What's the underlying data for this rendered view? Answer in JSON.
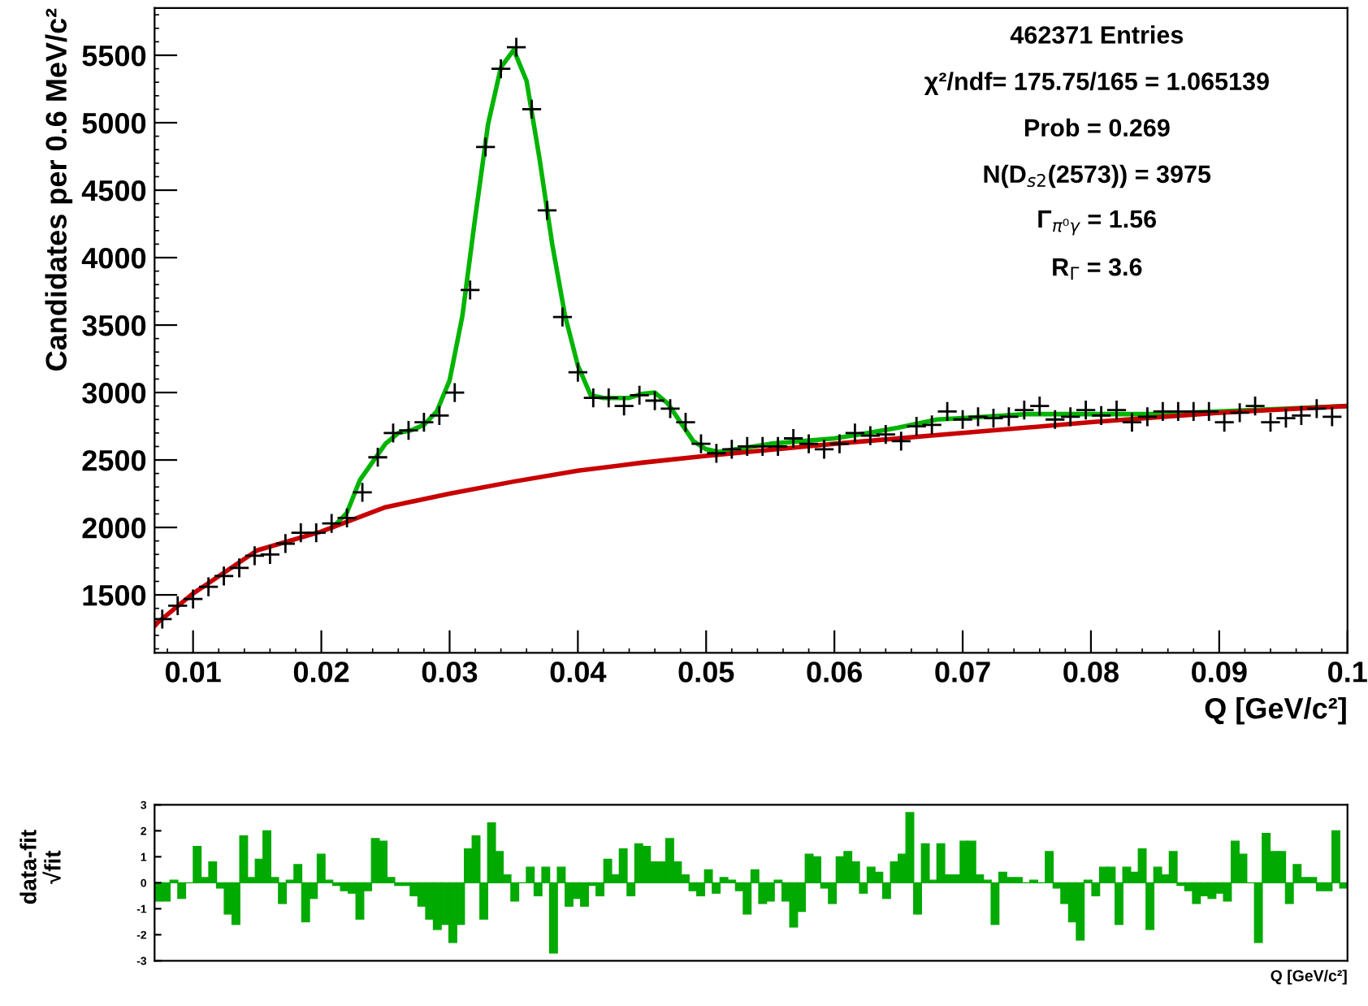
{
  "chart_data": [
    {
      "type": "scatter",
      "xlabel": "Q [GeV/c²]",
      "ylabel": "Candidates per 0.6 MeV/c²",
      "grid": false,
      "xlim": [
        0.007,
        0.1
      ],
      "xticks": [
        0.01,
        0.02,
        0.03,
        0.04,
        0.05,
        0.06,
        0.07,
        0.08,
        0.09,
        0.1
      ],
      "ylim": [
        1070,
        5850
      ],
      "yticks": [
        1500,
        2000,
        2500,
        3000,
        3500,
        4000,
        4500,
        5000,
        5500
      ],
      "annotations": [
        "462371 Entries",
        "χ²/ndf= 175.75/165 = 1.065139",
        "Prob = 0.269",
        "N(D$_{s2}$(2573)) = 3975",
        "Γ$_{π⁰γ}$ = 1.56",
        "R$_{Γ}$ = 3.6"
      ],
      "series": [
        {
          "type": "scatter",
          "marker": "cross",
          "color": "#000000",
          "x": [
            0.0076,
            0.0088,
            0.01,
            0.0112,
            0.0124,
            0.0136,
            0.0148,
            0.016,
            0.0172,
            0.0184,
            0.0196,
            0.0208,
            0.022,
            0.0232,
            0.0244,
            0.0256,
            0.0268,
            0.028,
            0.0292,
            0.0304,
            0.0316,
            0.0328,
            0.034,
            0.0352,
            0.0364,
            0.0376,
            0.0388,
            0.04,
            0.0412,
            0.0424,
            0.0436,
            0.0448,
            0.046,
            0.0472,
            0.0484,
            0.0496,
            0.0508,
            0.052,
            0.0532,
            0.0544,
            0.0556,
            0.0568,
            0.058,
            0.0592,
            0.0604,
            0.0616,
            0.0628,
            0.064,
            0.0652,
            0.0664,
            0.0676,
            0.0688,
            0.07,
            0.0712,
            0.0724,
            0.0736,
            0.0748,
            0.076,
            0.0772,
            0.0784,
            0.0796,
            0.0808,
            0.082,
            0.0832,
            0.0844,
            0.0856,
            0.0868,
            0.088,
            0.0892,
            0.0904,
            0.0916,
            0.0928,
            0.094,
            0.0952,
            0.0964,
            0.0976,
            0.0988
          ],
          "values": [
            1320,
            1420,
            1470,
            1560,
            1640,
            1700,
            1790,
            1800,
            1880,
            1960,
            1960,
            2030,
            2070,
            2260,
            2520,
            2700,
            2720,
            2780,
            2830,
            3000,
            3760,
            4820,
            5400,
            5560,
            5100,
            4350,
            3560,
            3150,
            2960,
            2960,
            2900,
            2980,
            2940,
            2880,
            2780,
            2620,
            2550,
            2580,
            2600,
            2600,
            2600,
            2660,
            2620,
            2580,
            2620,
            2700,
            2680,
            2690,
            2640,
            2750,
            2760,
            2860,
            2800,
            2820,
            2810,
            2820,
            2870,
            2900,
            2800,
            2820,
            2870,
            2830,
            2870,
            2780,
            2820,
            2860,
            2860,
            2860,
            2860,
            2780,
            2850,
            2900,
            2780,
            2810,
            2830,
            2880,
            2820
          ]
        },
        {
          "type": "line",
          "color": "#00b400",
          "x": [
            0.021,
            0.022,
            0.023,
            0.025,
            0.026,
            0.027,
            0.028,
            0.029,
            0.03,
            0.031,
            0.032,
            0.033,
            0.034,
            0.035,
            0.036,
            0.037,
            0.038,
            0.039,
            0.04,
            0.041,
            0.042,
            0.044,
            0.045,
            0.046,
            0.047,
            0.048,
            0.049,
            0.05,
            0.051,
            0.055,
            0.06,
            0.062,
            0.065,
            0.068,
            0.07,
            0.075,
            0.08,
            0.085,
            0.09,
            0.095,
            0.1
          ],
          "values": [
            2010,
            2110,
            2350,
            2620,
            2700,
            2720,
            2760,
            2860,
            3090,
            3570,
            4300,
            4990,
            5410,
            5540,
            5310,
            4740,
            4100,
            3570,
            3200,
            2980,
            2960,
            2960,
            2990,
            3000,
            2920,
            2780,
            2640,
            2580,
            2560,
            2620,
            2660,
            2690,
            2740,
            2800,
            2810,
            2840,
            2840,
            2840,
            2860,
            2880,
            2900
          ]
        },
        {
          "type": "line",
          "color": "#c80000",
          "x": [
            0.007,
            0.0073,
            0.01,
            0.015,
            0.02,
            0.025,
            0.03,
            0.035,
            0.04,
            0.045,
            0.05,
            0.06,
            0.07,
            0.08,
            0.09,
            0.1
          ],
          "values": [
            1270,
            1300,
            1510,
            1830,
            1970,
            2150,
            2250,
            2340,
            2420,
            2480,
            2530,
            2620,
            2700,
            2780,
            2850,
            2900
          ]
        }
      ]
    },
    {
      "type": "bar",
      "xlabel": "Q [GeV/c²]",
      "ylabel": "data-fit\n√fit",
      "grid": false,
      "tick_labels": "y",
      "color": "#00aa00",
      "ylim": [
        -3,
        3
      ],
      "yticks": [
        -3,
        -2,
        -1,
        0,
        1,
        2,
        3
      ],
      "categories": [
        null,
        null,
        null,
        null,
        null,
        null,
        null,
        null,
        null,
        null,
        null,
        null,
        null,
        null,
        null,
        null,
        null,
        null,
        null,
        null,
        null,
        null,
        null,
        null,
        null,
        null,
        null,
        null,
        null,
        null,
        null,
        null,
        null,
        null,
        null,
        null,
        null,
        null,
        null,
        null,
        null,
        null,
        null,
        null,
        null,
        null,
        null,
        null,
        null,
        null,
        null,
        null,
        null,
        null,
        null,
        null,
        null,
        null,
        null,
        null,
        null,
        null,
        null,
        null,
        null,
        null,
        null,
        null,
        null,
        null,
        null,
        null,
        null,
        null,
        null,
        null,
        null,
        null,
        null,
        null,
        null,
        null,
        null,
        null,
        null,
        null,
        null,
        null,
        null,
        null,
        null,
        null,
        null,
        null,
        null,
        null,
        null,
        null,
        null,
        null,
        null,
        null,
        null,
        null,
        null,
        null,
        null,
        null,
        null,
        null,
        null,
        null,
        null,
        null,
        null,
        null,
        null,
        null,
        null,
        null,
        null,
        null,
        null,
        null,
        null,
        null,
        null,
        null,
        null,
        null,
        null,
        null,
        null,
        null,
        null,
        null,
        null,
        null,
        null,
        null,
        null,
        null,
        null,
        null,
        null,
        null,
        null,
        null,
        null,
        null,
        null,
        null,
        null,
        null
      ],
      "values": [
        -0.7,
        -0.7,
        0.1,
        -0.6,
        0.0,
        1.4,
        0.2,
        0.8,
        -0.2,
        -1.2,
        -1.6,
        1.8,
        0.2,
        0.9,
        2.0,
        0.2,
        -0.8,
        0.1,
        0.7,
        -1.5,
        -0.6,
        1.1,
        0.1,
        -0.1,
        -0.3,
        -0.4,
        -1.4,
        -0.3,
        1.7,
        1.6,
        0.2,
        -0.1,
        -0.1,
        -0.5,
        -0.9,
        -1.4,
        -1.8,
        -1.6,
        -2.3,
        -1.6,
        1.3,
        1.8,
        -1.4,
        2.3,
        1.2,
        0.3,
        -0.7,
        0.0,
        0.6,
        -0.5,
        0.6,
        -2.7,
        0.6,
        -0.9,
        -0.6,
        -0.9,
        -0.1,
        -0.5,
        0.9,
        0.3,
        1.3,
        -0.5,
        1.5,
        1.4,
        0.8,
        0.8,
        1.7,
        0.8,
        0.3,
        -0.3,
        -0.5,
        0.5,
        -0.4,
        0.2,
        0.1,
        -0.3,
        -1.2,
        0.5,
        -0.8,
        -0.7,
        0.1,
        -0.7,
        -1.7,
        -1.1,
        1.1,
        1.0,
        -0.2,
        -0.8,
        1.0,
        1.2,
        0.8,
        -0.4,
        0.6,
        0.4,
        -0.6,
        0.8,
        1.1,
        2.7,
        -1.2,
        1.5,
        0.1,
        1.5,
        0.3,
        0.3,
        1.6,
        1.6,
        0.3,
        0.1,
        -1.6,
        0.4,
        0.2,
        0.2,
        0.0,
        0.1,
        0.0,
        1.2,
        -0.2,
        -0.8,
        -1.5,
        -2.2,
        0.1,
        -0.5,
        0.6,
        0.6,
        -1.6,
        0.6,
        0.4,
        1.3,
        -1.8,
        0.6,
        0.3,
        1.2,
        -0.1,
        -0.3,
        -0.8,
        -0.5,
        -0.6,
        -0.4,
        -0.7,
        1.6,
        1.1,
        0.0,
        -2.3,
        1.9,
        1.2,
        1.2,
        -0.8,
        0.7,
        0.2,
        0.2,
        -0.3,
        -0.3,
        2.0,
        -0.2
      ]
    }
  ]
}
